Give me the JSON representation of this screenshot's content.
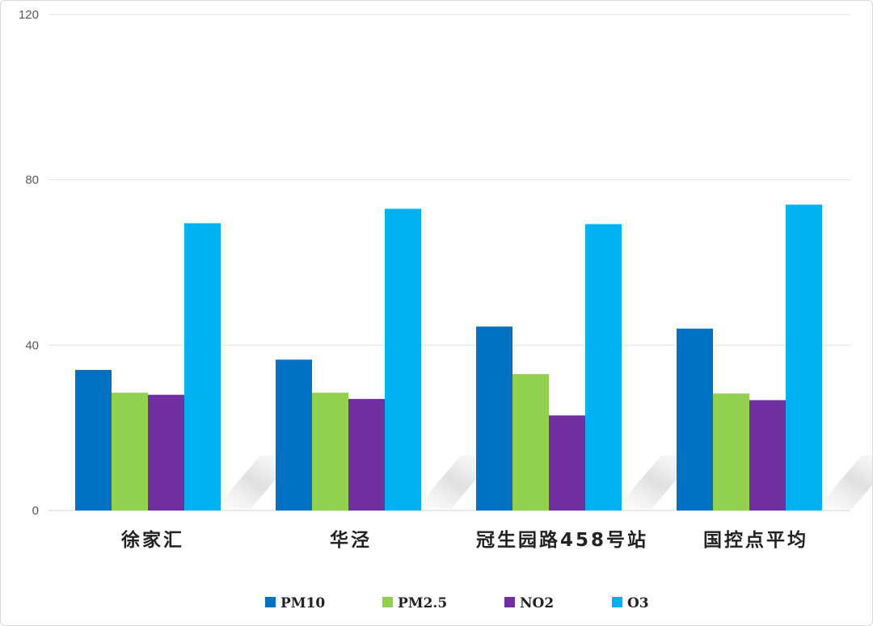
{
  "chart_data": {
    "type": "bar",
    "categories": [
      "徐家汇",
      "华泾",
      "冠生园路458号站",
      "国控点平均"
    ],
    "series": [
      {
        "name": "PM10",
        "color": "#0070C0",
        "values": [
          34,
          36.5,
          44.5,
          44
        ]
      },
      {
        "name": "PM2.5",
        "color": "#92D050",
        "values": [
          28.5,
          28.5,
          33,
          28.3
        ]
      },
      {
        "name": "NO2",
        "color": "#7030A0",
        "values": [
          28,
          27,
          23,
          26.7
        ]
      },
      {
        "name": "O3",
        "color": "#00B0F0",
        "values": [
          69.5,
          73,
          69.3,
          74
        ]
      }
    ],
    "yticks": [
      "0",
      "40",
      "80",
      "120"
    ],
    "ylim": [
      0,
      120
    ],
    "grid": true,
    "legend_position": "bottom",
    "title": "",
    "xlabel": "",
    "ylabel": ""
  }
}
